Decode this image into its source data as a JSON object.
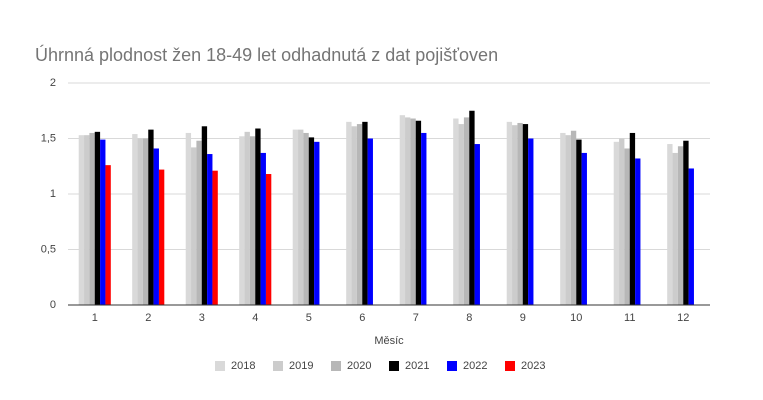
{
  "chart_data": {
    "type": "bar",
    "title": "Úhrnná plodnost žen 18-49 let odhadnutá z dat pojišťoven",
    "x_label": "Měsíc",
    "categories": [
      1,
      2,
      3,
      4,
      5,
      6,
      7,
      8,
      9,
      10,
      11,
      12
    ],
    "series": [
      {
        "name": "2018",
        "color": "#d9d9d9",
        "values": [
          1.53,
          1.54,
          1.55,
          1.52,
          1.58,
          1.65,
          1.71,
          1.68,
          1.65,
          1.55,
          1.47,
          1.45
        ]
      },
      {
        "name": "2019",
        "color": "#cccccc",
        "values": [
          1.53,
          1.5,
          1.42,
          1.56,
          1.58,
          1.61,
          1.69,
          1.63,
          1.62,
          1.53,
          1.5,
          1.37
        ]
      },
      {
        "name": "2020",
        "color": "#b7b7b7",
        "values": [
          1.55,
          1.5,
          1.48,
          1.52,
          1.55,
          1.63,
          1.68,
          1.69,
          1.64,
          1.57,
          1.41,
          1.43
        ]
      },
      {
        "name": "2021",
        "color": "#000000",
        "values": [
          1.56,
          1.58,
          1.61,
          1.59,
          1.51,
          1.65,
          1.66,
          1.75,
          1.63,
          1.49,
          1.55,
          1.48
        ]
      },
      {
        "name": "2022",
        "color": "#0000ff",
        "values": [
          1.49,
          1.41,
          1.36,
          1.37,
          1.47,
          1.5,
          1.55,
          1.45,
          1.5,
          1.37,
          1.32,
          1.23
        ]
      },
      {
        "name": "2023",
        "color": "#ff0000",
        "values": [
          1.26,
          1.22,
          1.21,
          1.18,
          null,
          null,
          null,
          null,
          null,
          null,
          null,
          null
        ]
      }
    ],
    "ylim": [
      0,
      2
    ],
    "yticks": [
      0,
      {
        "value": 0.5,
        "label": "0,5"
      },
      1,
      {
        "value": 1.5,
        "label": "1,5"
      },
      2
    ],
    "grid": true
  }
}
